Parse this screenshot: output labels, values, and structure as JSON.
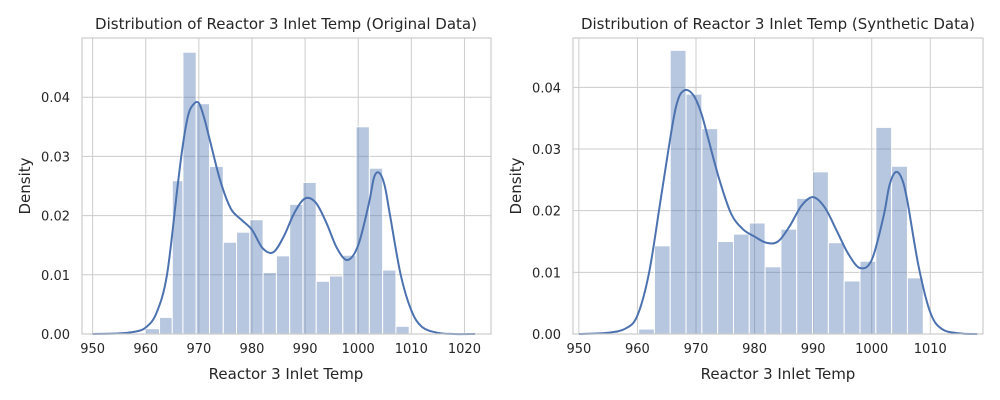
{
  "chart_data": [
    {
      "type": "histogram",
      "title": "Distribution of Reactor 3 Inlet Temp (Original Data)",
      "xlabel": "Reactor 3 Inlet Temp",
      "ylabel": "Density",
      "xlim": [
        948,
        1025
      ],
      "ylim": [
        0,
        0.05
      ],
      "xticks": [
        950,
        960,
        970,
        980,
        990,
        1000,
        1010,
        1020
      ],
      "yticks": [
        0.0,
        0.01,
        0.02,
        0.03,
        0.04
      ],
      "grid": true,
      "bar_color": "#4c72b0",
      "bar_opacity": 0.4,
      "kde_color": "#4c72b0",
      "bins": [
        {
          "x0": 959.9,
          "x1": 962.6,
          "density": 0.0009
        },
        {
          "x0": 962.6,
          "x1": 965.0,
          "density": 0.0028
        },
        {
          "x0": 965.0,
          "x1": 967.0,
          "density": 0.0259
        },
        {
          "x0": 967.0,
          "x1": 969.5,
          "density": 0.0476
        },
        {
          "x0": 969.5,
          "x1": 972.0,
          "density": 0.0389
        },
        {
          "x0": 972.0,
          "x1": 974.6,
          "density": 0.0283
        },
        {
          "x0": 974.6,
          "x1": 977.1,
          "density": 0.0155
        },
        {
          "x0": 977.1,
          "x1": 979.6,
          "density": 0.0172
        },
        {
          "x0": 979.6,
          "x1": 982.1,
          "density": 0.0193
        },
        {
          "x0": 982.1,
          "x1": 984.6,
          "density": 0.0104
        },
        {
          "x0": 984.6,
          "x1": 987.1,
          "density": 0.0132
        },
        {
          "x0": 987.1,
          "x1": 989.6,
          "density": 0.0219
        },
        {
          "x0": 989.6,
          "x1": 992.1,
          "density": 0.0256
        },
        {
          "x0": 992.1,
          "x1": 994.6,
          "density": 0.0089
        },
        {
          "x0": 994.6,
          "x1": 997.1,
          "density": 0.0098
        },
        {
          "x0": 997.1,
          "x1": 999.6,
          "density": 0.0133
        },
        {
          "x0": 999.6,
          "x1": 1002.1,
          "density": 0.035
        },
        {
          "x0": 1002.1,
          "x1": 1004.6,
          "density": 0.028
        },
        {
          "x0": 1004.6,
          "x1": 1007.1,
          "density": 0.0108
        },
        {
          "x0": 1007.1,
          "x1": 1009.6,
          "density": 0.0013
        }
      ],
      "kde": {
        "x": [
          950,
          955,
          958,
          960,
          962,
          964,
          966,
          967,
          968,
          969,
          970,
          971,
          972,
          974,
          976,
          978,
          980,
          982,
          984,
          986,
          988,
          990,
          992,
          994,
          996,
          998,
          1000,
          1002,
          1003,
          1004,
          1005,
          1006,
          1008,
          1010,
          1012,
          1015,
          1018,
          1022
        ],
        "y": [
          0.0,
          0.0001,
          0.0004,
          0.0011,
          0.0035,
          0.01,
          0.025,
          0.032,
          0.037,
          0.0388,
          0.039,
          0.0365,
          0.033,
          0.026,
          0.0212,
          0.0193,
          0.0176,
          0.0145,
          0.0138,
          0.0165,
          0.0205,
          0.0229,
          0.0222,
          0.0188,
          0.0145,
          0.0125,
          0.015,
          0.022,
          0.0265,
          0.0272,
          0.025,
          0.02,
          0.01,
          0.004,
          0.0012,
          0.0002,
          0.0,
          0.0
        ]
      }
    },
    {
      "type": "histogram",
      "title": "Distribution of Reactor 3 Inlet Temp (Synthetic Data)",
      "xlabel": "Reactor 3 Inlet Temp",
      "ylabel": "Density",
      "xlim": [
        949,
        1019
      ],
      "ylim": [
        0,
        0.048
      ],
      "xticks": [
        950,
        960,
        970,
        980,
        990,
        1000,
        1010
      ],
      "yticks": [
        0.0,
        0.01,
        0.02,
        0.03,
        0.04
      ],
      "grid": true,
      "bar_color": "#4c72b0",
      "bar_opacity": 0.4,
      "kde_color": "#4c72b0",
      "bins": [
        {
          "x0": 960.2,
          "x1": 962.9,
          "density": 0.0008
        },
        {
          "x0": 962.9,
          "x1": 965.6,
          "density": 0.0143
        },
        {
          "x0": 965.6,
          "x1": 968.3,
          "density": 0.046
        },
        {
          "x0": 968.3,
          "x1": 971.0,
          "density": 0.0389
        },
        {
          "x0": 971.0,
          "x1": 973.7,
          "density": 0.0333
        },
        {
          "x0": 973.7,
          "x1": 976.4,
          "density": 0.015
        },
        {
          "x0": 976.4,
          "x1": 979.1,
          "density": 0.0162
        },
        {
          "x0": 979.1,
          "x1": 981.8,
          "density": 0.018
        },
        {
          "x0": 981.8,
          "x1": 984.5,
          "density": 0.0109
        },
        {
          "x0": 984.5,
          "x1": 987.2,
          "density": 0.017
        },
        {
          "x0": 987.2,
          "x1": 989.9,
          "density": 0.022
        },
        {
          "x0": 989.9,
          "x1": 992.6,
          "density": 0.0263
        },
        {
          "x0": 992.6,
          "x1": 995.3,
          "density": 0.0148
        },
        {
          "x0": 995.3,
          "x1": 998.0,
          "density": 0.0086
        },
        {
          "x0": 998.0,
          "x1": 1000.7,
          "density": 0.0118
        },
        {
          "x0": 1000.7,
          "x1": 1003.4,
          "density": 0.0335
        },
        {
          "x0": 1003.4,
          "x1": 1006.1,
          "density": 0.0272
        },
        {
          "x0": 1006.1,
          "x1": 1008.8,
          "density": 0.0091
        }
      ],
      "kde": {
        "x": [
          950,
          955,
          958,
          960,
          962,
          964,
          966,
          967,
          968,
          969,
          970,
          971,
          972,
          974,
          976,
          978,
          980,
          982,
          984,
          986,
          988,
          990,
          992,
          994,
          996,
          998,
          1000,
          1002,
          1003,
          1004,
          1005,
          1006,
          1008,
          1010,
          1012,
          1015,
          1018
        ],
        "y": [
          0.0,
          0.0002,
          0.0009,
          0.003,
          0.01,
          0.022,
          0.034,
          0.0382,
          0.0395,
          0.0393,
          0.038,
          0.0355,
          0.032,
          0.025,
          0.0195,
          0.017,
          0.0158,
          0.0148,
          0.015,
          0.0175,
          0.0208,
          0.0222,
          0.0205,
          0.0168,
          0.013,
          0.0107,
          0.012,
          0.019,
          0.024,
          0.0262,
          0.0255,
          0.022,
          0.011,
          0.0035,
          0.0008,
          0.0001,
          0.0
        ]
      }
    }
  ]
}
